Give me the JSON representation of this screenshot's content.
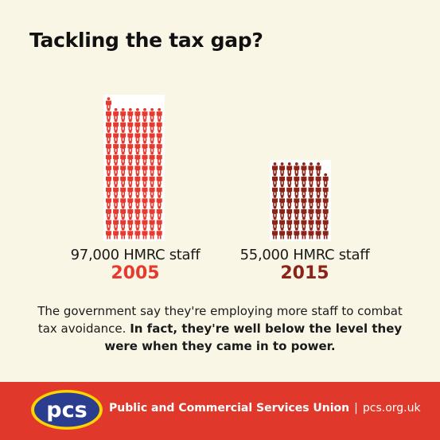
{
  "title": "Tackling the tax gap?",
  "chart_data": {
    "type": "bar",
    "categories": [
      "2005",
      "2015"
    ],
    "series": [
      {
        "values": [
          97000,
          55000
        ]
      }
    ],
    "value_labels": [
      "97,000 HMRC staff",
      "55,000 HMRC staff"
    ],
    "icon_unit": 1000,
    "colors": [
      "#e63a2e",
      "#8b2418"
    ]
  },
  "caption": {
    "normal": "The government say they're employing more staff to combat tax avoidance. ",
    "bold": "In fact, they're well below the level they were when they came in to power."
  },
  "footer": {
    "logo_text": "pcs",
    "org_name": "Public and Commercial Services Union",
    "separator": "|",
    "url": "pcs.org.uk"
  }
}
